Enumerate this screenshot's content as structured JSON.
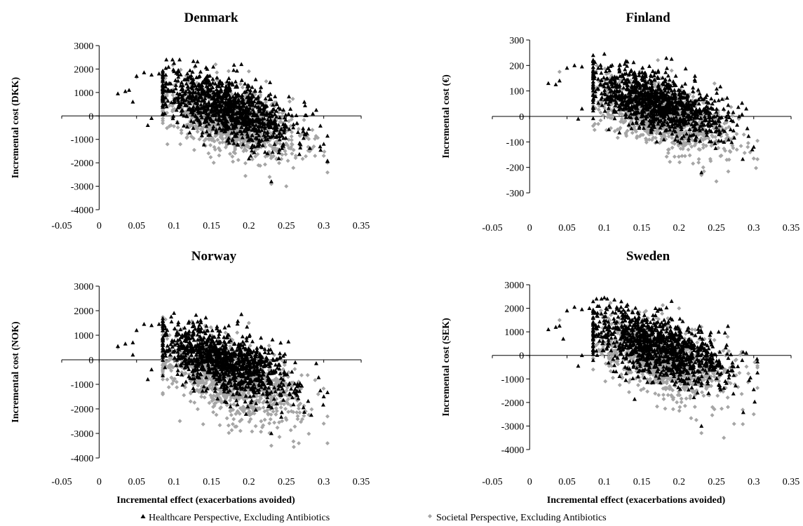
{
  "figure": {
    "legend": [
      {
        "label": "Healthcare Perspective, Excluding Antibiotics",
        "marker": "triangle",
        "color": "#000000"
      },
      {
        "label": "Societal Perspective, Excluding Antibiotics",
        "marker": "diamond",
        "color": "#a6a6a6"
      }
    ]
  },
  "chart_data": [
    {
      "type": "scatter",
      "title": "Denmark",
      "xlabel": "",
      "ylabel": "Incremental cost (DKK)",
      "xlim": [
        -0.05,
        0.35
      ],
      "ylim": [
        -4000,
        3000
      ],
      "x_ticks": [
        -0.05,
        0,
        0.05,
        0.1,
        0.15,
        0.2,
        0.25,
        0.3,
        0.35
      ],
      "y_ticks": [
        3000,
        2000,
        1000,
        0,
        -1000,
        -2000,
        -3000,
        -4000
      ],
      "series": [
        {
          "name": "Healthcare Perspective, Excluding Antibiotics",
          "cloud": {
            "n": 1100,
            "x_mean": 0.17,
            "x_sd": 0.045,
            "y_mean": 350,
            "y_sd": 620,
            "slope": -9500,
            "seed": 11
          },
          "points": [
            [
              0.025,
              950
            ],
            [
              0.035,
              1050
            ],
            [
              0.04,
              1100
            ],
            [
              0.05,
              1700
            ],
            [
              0.06,
              1850
            ],
            [
              0.07,
              1750
            ],
            [
              0.08,
              1800
            ],
            [
              0.065,
              -400
            ],
            [
              0.07,
              -100
            ],
            [
              0.1,
              2250
            ],
            [
              0.19,
              2200
            ],
            [
              0.23,
              -2800
            ],
            [
              0.3,
              -1200
            ],
            [
              0.29,
              250
            ],
            [
              0.045,
              600
            ]
          ]
        },
        {
          "name": "Societal Perspective, Excluding Antibiotics",
          "cloud": {
            "n": 1100,
            "x_mean": 0.175,
            "x_sd": 0.045,
            "y_mean": -200,
            "y_sd": 680,
            "slope": -10000,
            "seed": 23
          },
          "points": [
            [
              0.25,
              -3000
            ],
            [
              0.23,
              -2900
            ],
            [
              0.3,
              -1700
            ],
            [
              0.05,
              1650
            ],
            [
              0.09,
              700
            ],
            [
              0.2,
              1900
            ]
          ]
        }
      ]
    },
    {
      "type": "scatter",
      "title": "Finland",
      "xlabel": "Incremental effect (exacerbations avoided)",
      "ylabel": "Incremental cost (€)",
      "xlim": [
        -0.05,
        0.35
      ],
      "ylim": [
        -300,
        300
      ],
      "x_ticks": [
        -0.05,
        0,
        0.05,
        0.1,
        0.15,
        0.2,
        0.25,
        0.3,
        0.35
      ],
      "y_ticks": [
        300,
        200,
        100,
        0,
        -100,
        -200,
        -300
      ],
      "series": [
        {
          "name": "Healthcare Perspective, Excluding Antibiotics",
          "cloud": {
            "n": 1100,
            "x_mean": 0.17,
            "x_sd": 0.045,
            "y_mean": 55,
            "y_sd": 55,
            "slope": -850,
            "seed": 37
          },
          "points": [
            [
              0.025,
              130
            ],
            [
              0.035,
              125
            ],
            [
              0.04,
              140
            ],
            [
              0.05,
              190
            ],
            [
              0.06,
              200
            ],
            [
              0.07,
              195
            ],
            [
              0.065,
              -10
            ],
            [
              0.07,
              30
            ],
            [
              0.1,
              245
            ],
            [
              0.19,
              225
            ],
            [
              0.23,
              -220
            ],
            [
              0.3,
              -120
            ],
            [
              0.29,
              30
            ]
          ]
        },
        {
          "name": "Societal Perspective, Excluding Antibiotics",
          "cloud": {
            "n": 1100,
            "x_mean": 0.175,
            "x_sd": 0.045,
            "y_mean": 5,
            "y_sd": 60,
            "slope": -900,
            "seed": 41
          },
          "points": [
            [
              0.25,
              -255
            ],
            [
              0.23,
              -230
            ],
            [
              0.3,
              -165
            ],
            [
              0.04,
              175
            ],
            [
              0.09,
              200
            ]
          ]
        }
      ]
    },
    {
      "type": "scatter",
      "title": "Norway",
      "xlabel": "Incremental effect (exacerbations avoided)",
      "ylabel": "Incremental cost (NOK)",
      "xlim": [
        -0.05,
        0.35
      ],
      "ylim": [
        -4000,
        3000
      ],
      "x_ticks": [
        -0.05,
        0,
        0.05,
        0.1,
        0.15,
        0.2,
        0.25,
        0.3,
        0.35
      ],
      "y_ticks": [
        3000,
        2000,
        1000,
        0,
        -1000,
        -2000,
        -3000,
        -4000
      ],
      "series": [
        {
          "name": "Healthcare Perspective, Excluding Antibiotics",
          "cloud": {
            "n": 1100,
            "x_mean": 0.17,
            "x_sd": 0.045,
            "y_mean": -100,
            "y_sd": 620,
            "slope": -9500,
            "seed": 53
          },
          "points": [
            [
              0.025,
              550
            ],
            [
              0.035,
              650
            ],
            [
              0.045,
              700
            ],
            [
              0.05,
              1200
            ],
            [
              0.06,
              1450
            ],
            [
              0.07,
              1400
            ],
            [
              0.08,
              1450
            ],
            [
              0.065,
              -800
            ],
            [
              0.07,
              -400
            ],
            [
              0.1,
              1900
            ],
            [
              0.19,
              1850
            ],
            [
              0.23,
              -3000
            ],
            [
              0.3,
              -1500
            ],
            [
              0.29,
              -150
            ],
            [
              0.045,
              200
            ]
          ]
        },
        {
          "name": "Societal Perspective, Excluding Antibiotics",
          "cloud": {
            "n": 1100,
            "x_mean": 0.175,
            "x_sd": 0.045,
            "y_mean": -800,
            "y_sd": 700,
            "slope": -10000,
            "seed": 67
          },
          "points": [
            [
              0.23,
              -3500
            ],
            [
              0.26,
              -3550
            ],
            [
              0.3,
              -2600
            ],
            [
              0.025,
              500
            ],
            [
              0.09,
              400
            ],
            [
              0.2,
              1500
            ]
          ]
        }
      ]
    },
    {
      "type": "scatter",
      "title": "Sweden",
      "xlabel": "Incremental effect (exacerbations avoided)",
      "ylabel": "Incremental cost (SEK)",
      "xlim": [
        -0.05,
        0.35
      ],
      "ylim": [
        -4000,
        3000
      ],
      "x_ticks": [
        -0.05,
        0,
        0.05,
        0.1,
        0.15,
        0.2,
        0.25,
        0.3,
        0.35
      ],
      "y_ticks": [
        3000,
        2000,
        1000,
        0,
        -1000,
        -2000,
        -3000,
        -4000
      ],
      "series": [
        {
          "name": "Healthcare Perspective, Excluding Antibiotics",
          "cloud": {
            "n": 1100,
            "x_mean": 0.17,
            "x_sd": 0.045,
            "y_mean": 400,
            "y_sd": 650,
            "slope": -9500,
            "seed": 79
          },
          "points": [
            [
              0.025,
              1100
            ],
            [
              0.035,
              1200
            ],
            [
              0.04,
              1250
            ],
            [
              0.05,
              1900
            ],
            [
              0.06,
              2050
            ],
            [
              0.07,
              1950
            ],
            [
              0.08,
              2000
            ],
            [
              0.065,
              -450
            ],
            [
              0.07,
              0
            ],
            [
              0.1,
              2450
            ],
            [
              0.19,
              2300
            ],
            [
              0.23,
              -3000
            ],
            [
              0.3,
              -1450
            ],
            [
              0.29,
              100
            ],
            [
              0.045,
              700
            ]
          ]
        },
        {
          "name": "Societal Perspective, Excluding Antibiotics",
          "cloud": {
            "n": 1100,
            "x_mean": 0.175,
            "x_sd": 0.045,
            "y_mean": -150,
            "y_sd": 700,
            "slope": -10000,
            "seed": 97
          },
          "points": [
            [
              0.26,
              -3500
            ],
            [
              0.23,
              -3300
            ],
            [
              0.3,
              -2500
            ],
            [
              0.04,
              1500
            ],
            [
              0.09,
              850
            ],
            [
              0.2,
              2000
            ]
          ]
        }
      ]
    }
  ]
}
